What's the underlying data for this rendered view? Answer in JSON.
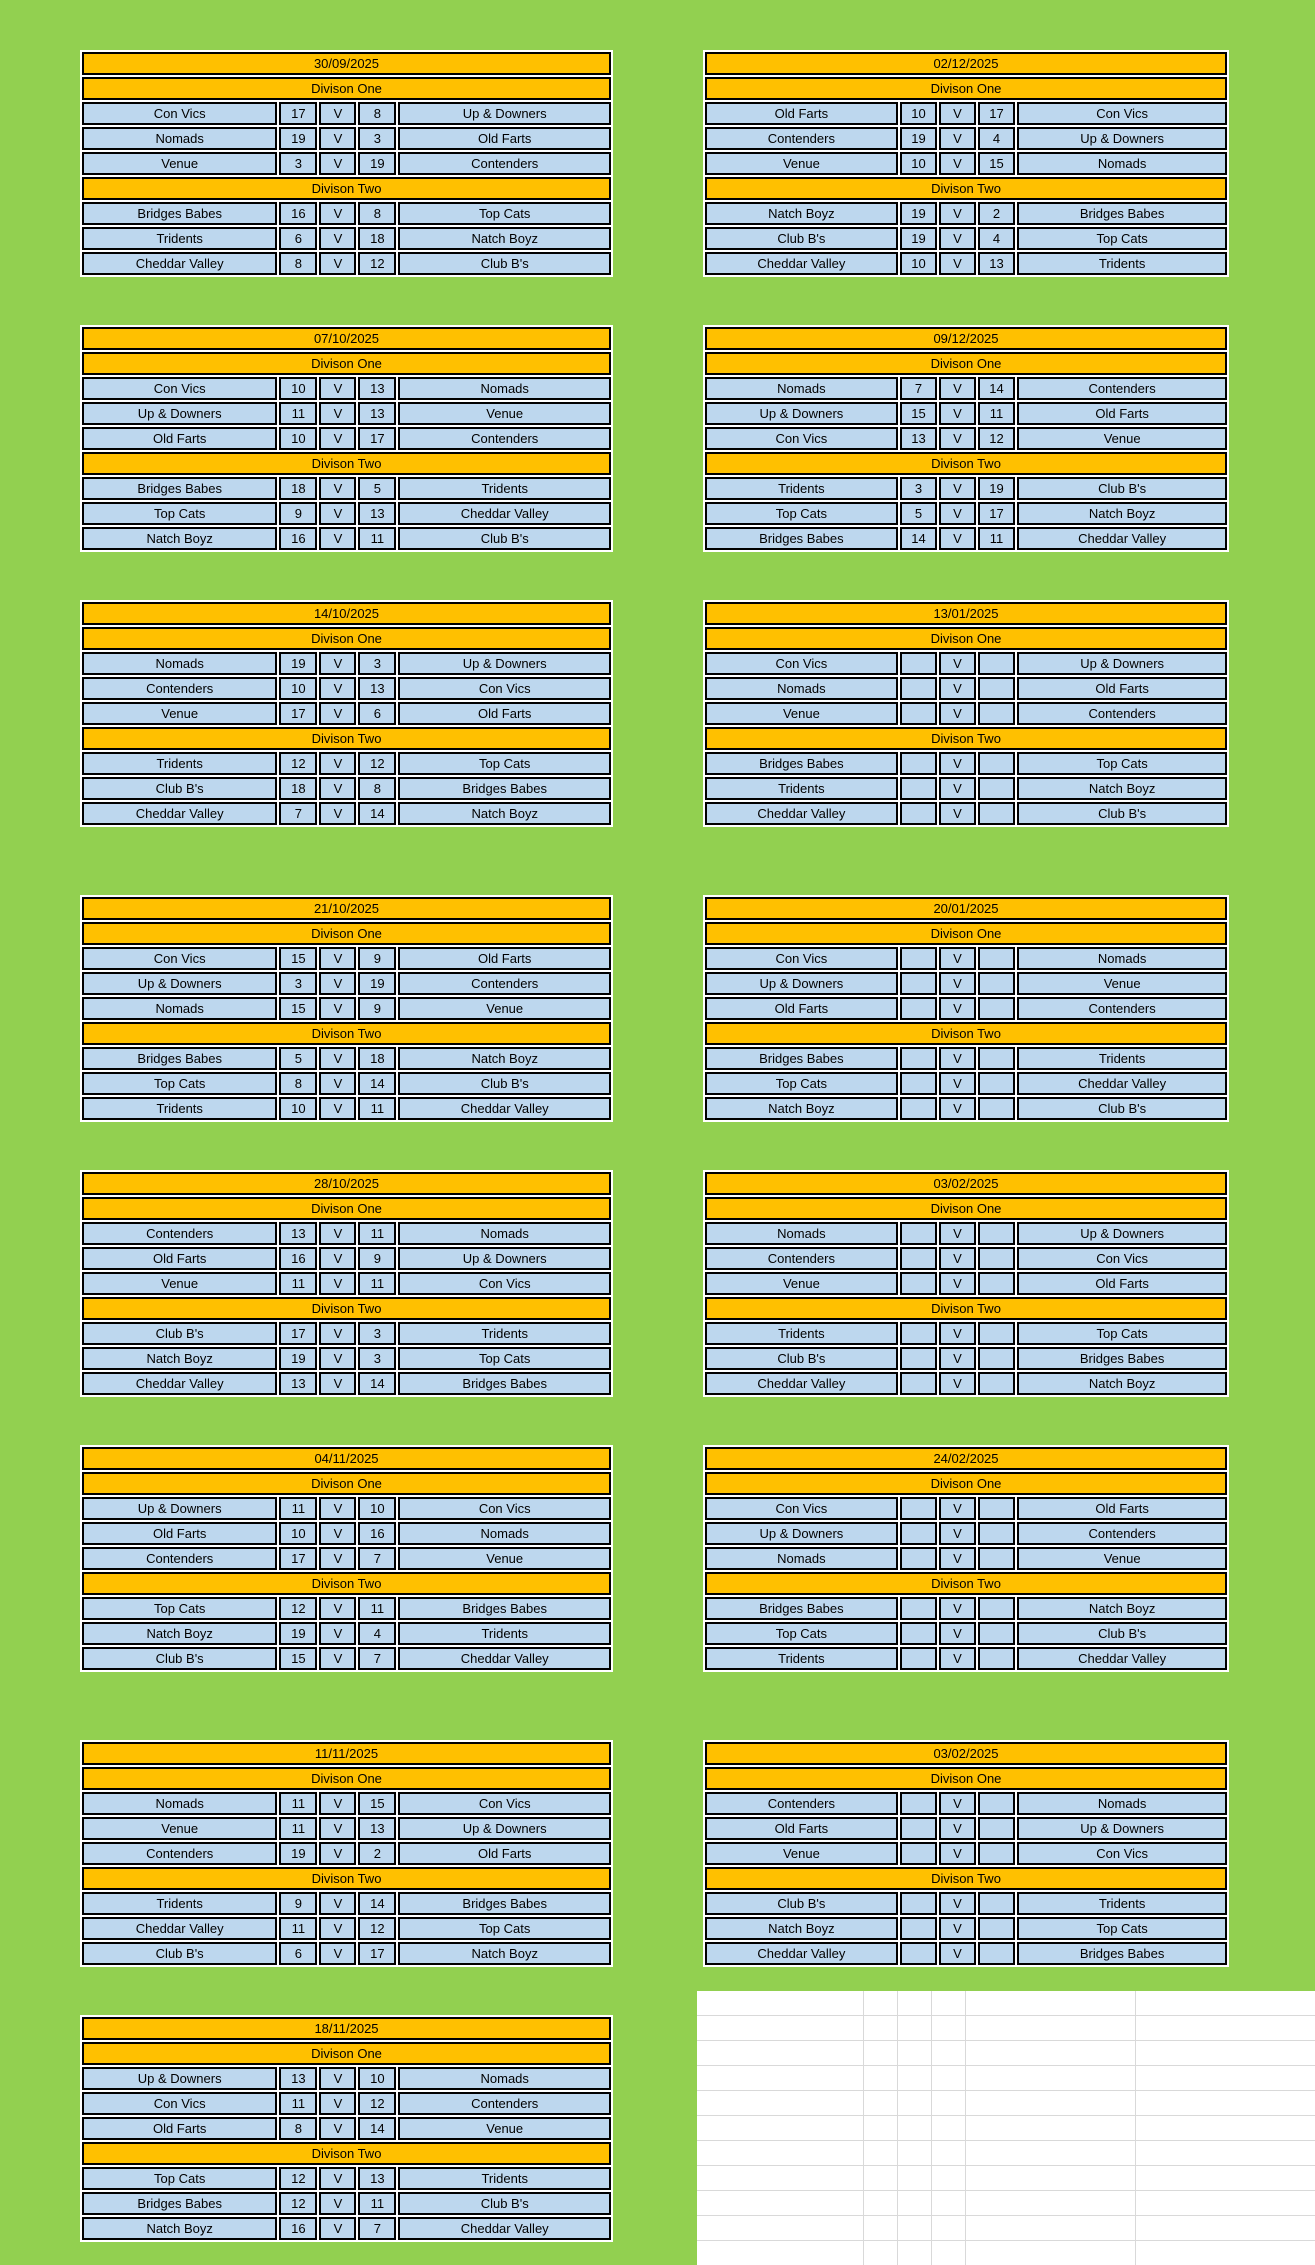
{
  "sheet": {
    "background_color": "#92D050",
    "header_color": "#FFC000",
    "row_color": "#BDD7EE",
    "gridline_color": "#D9D9D9",
    "border_color": "#000000"
  },
  "labels": {
    "division_one": "Divison One",
    "division_two": "Divison Two",
    "versus": "V"
  },
  "columns": {
    "left": [
      {
        "date": "30/09/2025",
        "division_one": [
          {
            "home": "Con Vics",
            "home_score": "17",
            "away_score": "8",
            "away": "Up & Downers"
          },
          {
            "home": "Nomads",
            "home_score": "19",
            "away_score": "3",
            "away": "Old Farts"
          },
          {
            "home": "Venue",
            "home_score": "3",
            "away_score": "19",
            "away": "Contenders"
          }
        ],
        "division_two": [
          {
            "home": "Bridges Babes",
            "home_score": "16",
            "away_score": "8",
            "away": "Top Cats"
          },
          {
            "home": "Tridents",
            "home_score": "6",
            "away_score": "18",
            "away": "Natch Boyz"
          },
          {
            "home": "Cheddar Valley",
            "home_score": "8",
            "away_score": "12",
            "away": "Club B's"
          }
        ]
      },
      {
        "date": "07/10/2025",
        "division_one": [
          {
            "home": "Con Vics",
            "home_score": "10",
            "away_score": "13",
            "away": "Nomads"
          },
          {
            "home": "Up & Downers",
            "home_score": "11",
            "away_score": "13",
            "away": "Venue"
          },
          {
            "home": "Old Farts",
            "home_score": "10",
            "away_score": "17",
            "away": "Contenders"
          }
        ],
        "division_two": [
          {
            "home": "Bridges Babes",
            "home_score": "18",
            "away_score": "5",
            "away": "Tridents"
          },
          {
            "home": "Top Cats",
            "home_score": "9",
            "away_score": "13",
            "away": "Cheddar Valley"
          },
          {
            "home": "Natch Boyz",
            "home_score": "16",
            "away_score": "11",
            "away": "Club B's"
          }
        ]
      },
      {
        "date": "14/10/2025",
        "division_one": [
          {
            "home": "Nomads",
            "home_score": "19",
            "away_score": "3",
            "away": "Up & Downers"
          },
          {
            "home": "Contenders",
            "home_score": "10",
            "away_score": "13",
            "away": "Con Vics"
          },
          {
            "home": "Venue",
            "home_score": "17",
            "away_score": "6",
            "away": "Old Farts"
          }
        ],
        "division_two": [
          {
            "home": "Tridents",
            "home_score": "12",
            "away_score": "12",
            "away": "Top Cats"
          },
          {
            "home": "Club B's",
            "home_score": "18",
            "away_score": "8",
            "away": "Bridges Babes"
          },
          {
            "home": "Cheddar Valley",
            "home_score": "7",
            "away_score": "14",
            "away": "Natch Boyz"
          }
        ]
      },
      {
        "date": "21/10/2025",
        "division_one": [
          {
            "home": "Con Vics",
            "home_score": "15",
            "away_score": "9",
            "away": "Old Farts"
          },
          {
            "home": "Up & Downers",
            "home_score": "3",
            "away_score": "19",
            "away": "Contenders"
          },
          {
            "home": "Nomads",
            "home_score": "15",
            "away_score": "9",
            "away": "Venue"
          }
        ],
        "division_two": [
          {
            "home": "Bridges Babes",
            "home_score": "5",
            "away_score": "18",
            "away": "Natch Boyz"
          },
          {
            "home": "Top Cats",
            "home_score": "8",
            "away_score": "14",
            "away": "Club B's"
          },
          {
            "home": "Tridents",
            "home_score": "10",
            "away_score": "11",
            "away": "Cheddar Valley"
          }
        ]
      },
      {
        "date": "28/10/2025",
        "division_one": [
          {
            "home": "Contenders",
            "home_score": "13",
            "away_score": "11",
            "away": "Nomads"
          },
          {
            "home": "Old Farts",
            "home_score": "16",
            "away_score": "9",
            "away": "Up & Downers"
          },
          {
            "home": "Venue",
            "home_score": "11",
            "away_score": "11",
            "away": "Con Vics"
          }
        ],
        "division_two": [
          {
            "home": "Club B's",
            "home_score": "17",
            "away_score": "3",
            "away": "Tridents"
          },
          {
            "home": "Natch Boyz",
            "home_score": "19",
            "away_score": "3",
            "away": "Top Cats"
          },
          {
            "home": "Cheddar Valley",
            "home_score": "13",
            "away_score": "14",
            "away": "Bridges Babes"
          }
        ]
      },
      {
        "date": "04/11/2025",
        "division_one": [
          {
            "home": "Up & Downers",
            "home_score": "11",
            "away_score": "10",
            "away": "Con Vics"
          },
          {
            "home": "Old Farts",
            "home_score": "10",
            "away_score": "16",
            "away": "Nomads"
          },
          {
            "home": "Contenders",
            "home_score": "17",
            "away_score": "7",
            "away": "Venue"
          }
        ],
        "division_two": [
          {
            "home": "Top Cats",
            "home_score": "12",
            "away_score": "11",
            "away": "Bridges Babes"
          },
          {
            "home": "Natch Boyz",
            "home_score": "19",
            "away_score": "4",
            "away": "Tridents"
          },
          {
            "home": "Club B's",
            "home_score": "15",
            "away_score": "7",
            "away": "Cheddar Valley"
          }
        ]
      },
      {
        "date": "11/11/2025",
        "division_one": [
          {
            "home": "Nomads",
            "home_score": "11",
            "away_score": "15",
            "away": "Con Vics"
          },
          {
            "home": "Venue",
            "home_score": "11",
            "away_score": "13",
            "away": "Up & Downers"
          },
          {
            "home": "Contenders",
            "home_score": "19",
            "away_score": "2",
            "away": "Old Farts"
          }
        ],
        "division_two": [
          {
            "home": "Tridents",
            "home_score": "9",
            "away_score": "14",
            "away": "Bridges Babes"
          },
          {
            "home": "Cheddar Valley",
            "home_score": "11",
            "away_score": "12",
            "away": "Top Cats"
          },
          {
            "home": "Club B's",
            "home_score": "6",
            "away_score": "17",
            "away": "Natch Boyz"
          }
        ]
      },
      {
        "date": "18/11/2025",
        "division_one": [
          {
            "home": "Up & Downers",
            "home_score": "13",
            "away_score": "10",
            "away": "Nomads"
          },
          {
            "home": "Con Vics",
            "home_score": "11",
            "away_score": "12",
            "away": "Contenders"
          },
          {
            "home": "Old Farts",
            "home_score": "8",
            "away_score": "14",
            "away": "Venue"
          }
        ],
        "division_two": [
          {
            "home": "Top Cats",
            "home_score": "12",
            "away_score": "13",
            "away": "Tridents"
          },
          {
            "home": "Bridges Babes",
            "home_score": "12",
            "away_score": "11",
            "away": "Club B's"
          },
          {
            "home": "Natch Boyz",
            "home_score": "16",
            "away_score": "7",
            "away": "Cheddar Valley"
          }
        ]
      }
    ],
    "right": [
      {
        "date": "02/12/2025",
        "division_one": [
          {
            "home": "Old Farts",
            "home_score": "10",
            "away_score": "17",
            "away": "Con Vics"
          },
          {
            "home": "Contenders",
            "home_score": "19",
            "away_score": "4",
            "away": "Up & Downers"
          },
          {
            "home": "Venue",
            "home_score": "10",
            "away_score": "15",
            "away": "Nomads"
          }
        ],
        "division_two": [
          {
            "home": "Natch Boyz",
            "home_score": "19",
            "away_score": "2",
            "away": "Bridges Babes"
          },
          {
            "home": "Club B's",
            "home_score": "19",
            "away_score": "4",
            "away": "Top Cats"
          },
          {
            "home": "Cheddar Valley",
            "home_score": "10",
            "away_score": "13",
            "away": "Tridents"
          }
        ]
      },
      {
        "date": "09/12/2025",
        "division_one": [
          {
            "home": "Nomads",
            "home_score": "7",
            "away_score": "14",
            "away": "Contenders"
          },
          {
            "home": "Up & Downers",
            "home_score": "15",
            "away_score": "11",
            "away": "Old Farts"
          },
          {
            "home": "Con Vics",
            "home_score": "13",
            "away_score": "12",
            "away": "Venue"
          }
        ],
        "division_two": [
          {
            "home": "Tridents",
            "home_score": "3",
            "away_score": "19",
            "away": "Club B's"
          },
          {
            "home": "Top Cats",
            "home_score": "5",
            "away_score": "17",
            "away": "Natch Boyz"
          },
          {
            "home": "Bridges Babes",
            "home_score": "14",
            "away_score": "11",
            "away": "Cheddar Valley"
          }
        ]
      },
      {
        "date": "13/01/2025",
        "division_one": [
          {
            "home": "Con Vics",
            "home_score": "",
            "away_score": "",
            "away": "Up & Downers"
          },
          {
            "home": "Nomads",
            "home_score": "",
            "away_score": "",
            "away": "Old Farts"
          },
          {
            "home": "Venue",
            "home_score": "",
            "away_score": "",
            "away": "Contenders"
          }
        ],
        "division_two": [
          {
            "home": "Bridges Babes",
            "home_score": "",
            "away_score": "",
            "away": "Top Cats"
          },
          {
            "home": "Tridents",
            "home_score": "",
            "away_score": "",
            "away": "Natch Boyz"
          },
          {
            "home": "Cheddar Valley",
            "home_score": "",
            "away_score": "",
            "away": "Club B's"
          }
        ]
      },
      {
        "date": "20/01/2025",
        "division_one": [
          {
            "home": "Con Vics",
            "home_score": "",
            "away_score": "",
            "away": "Nomads"
          },
          {
            "home": "Up & Downers",
            "home_score": "",
            "away_score": "",
            "away": "Venue"
          },
          {
            "home": "Old Farts",
            "home_score": "",
            "away_score": "",
            "away": "Contenders"
          }
        ],
        "division_two": [
          {
            "home": "Bridges Babes",
            "home_score": "",
            "away_score": "",
            "away": "Tridents"
          },
          {
            "home": "Top Cats",
            "home_score": "",
            "away_score": "",
            "away": "Cheddar Valley"
          },
          {
            "home": "Natch Boyz",
            "home_score": "",
            "away_score": "",
            "away": "Club B's"
          }
        ]
      },
      {
        "date": "03/02/2025",
        "division_one": [
          {
            "home": "Nomads",
            "home_score": "",
            "away_score": "",
            "away": "Up & Downers"
          },
          {
            "home": "Contenders",
            "home_score": "",
            "away_score": "",
            "away": "Con Vics"
          },
          {
            "home": "Venue",
            "home_score": "",
            "away_score": "",
            "away": "Old Farts"
          }
        ],
        "division_two": [
          {
            "home": "Tridents",
            "home_score": "",
            "away_score": "",
            "away": "Top Cats"
          },
          {
            "home": "Club B's",
            "home_score": "",
            "away_score": "",
            "away": "Bridges Babes"
          },
          {
            "home": "Cheddar Valley",
            "home_score": "",
            "away_score": "",
            "away": "Natch Boyz"
          }
        ]
      },
      {
        "date": "24/02/2025",
        "division_one": [
          {
            "home": "Con Vics",
            "home_score": "",
            "away_score": "",
            "away": "Old Farts"
          },
          {
            "home": "Up & Downers",
            "home_score": "",
            "away_score": "",
            "away": "Contenders"
          },
          {
            "home": "Nomads",
            "home_score": "",
            "away_score": "",
            "away": "Venue"
          }
        ],
        "division_two": [
          {
            "home": "Bridges Babes",
            "home_score": "",
            "away_score": "",
            "away": "Natch Boyz"
          },
          {
            "home": "Top Cats",
            "home_score": "",
            "away_score": "",
            "away": "Club B's"
          },
          {
            "home": "Tridents",
            "home_score": "",
            "away_score": "",
            "away": "Cheddar Valley"
          }
        ]
      },
      {
        "date": "03/02/2025",
        "division_one": [
          {
            "home": "Contenders",
            "home_score": "",
            "away_score": "",
            "away": "Nomads"
          },
          {
            "home": "Old Farts",
            "home_score": "",
            "away_score": "",
            "away": "Up & Downers"
          },
          {
            "home": "Venue",
            "home_score": "",
            "away_score": "",
            "away": "Con Vics"
          }
        ],
        "division_two": [
          {
            "home": "Club B's",
            "home_score": "",
            "away_score": "",
            "away": "Tridents"
          },
          {
            "home": "Natch Boyz",
            "home_score": "",
            "away_score": "",
            "away": "Top Cats"
          },
          {
            "home": "Cheddar Valley",
            "home_score": "",
            "away_score": "",
            "away": "Bridges Babes"
          }
        ]
      }
    ]
  }
}
